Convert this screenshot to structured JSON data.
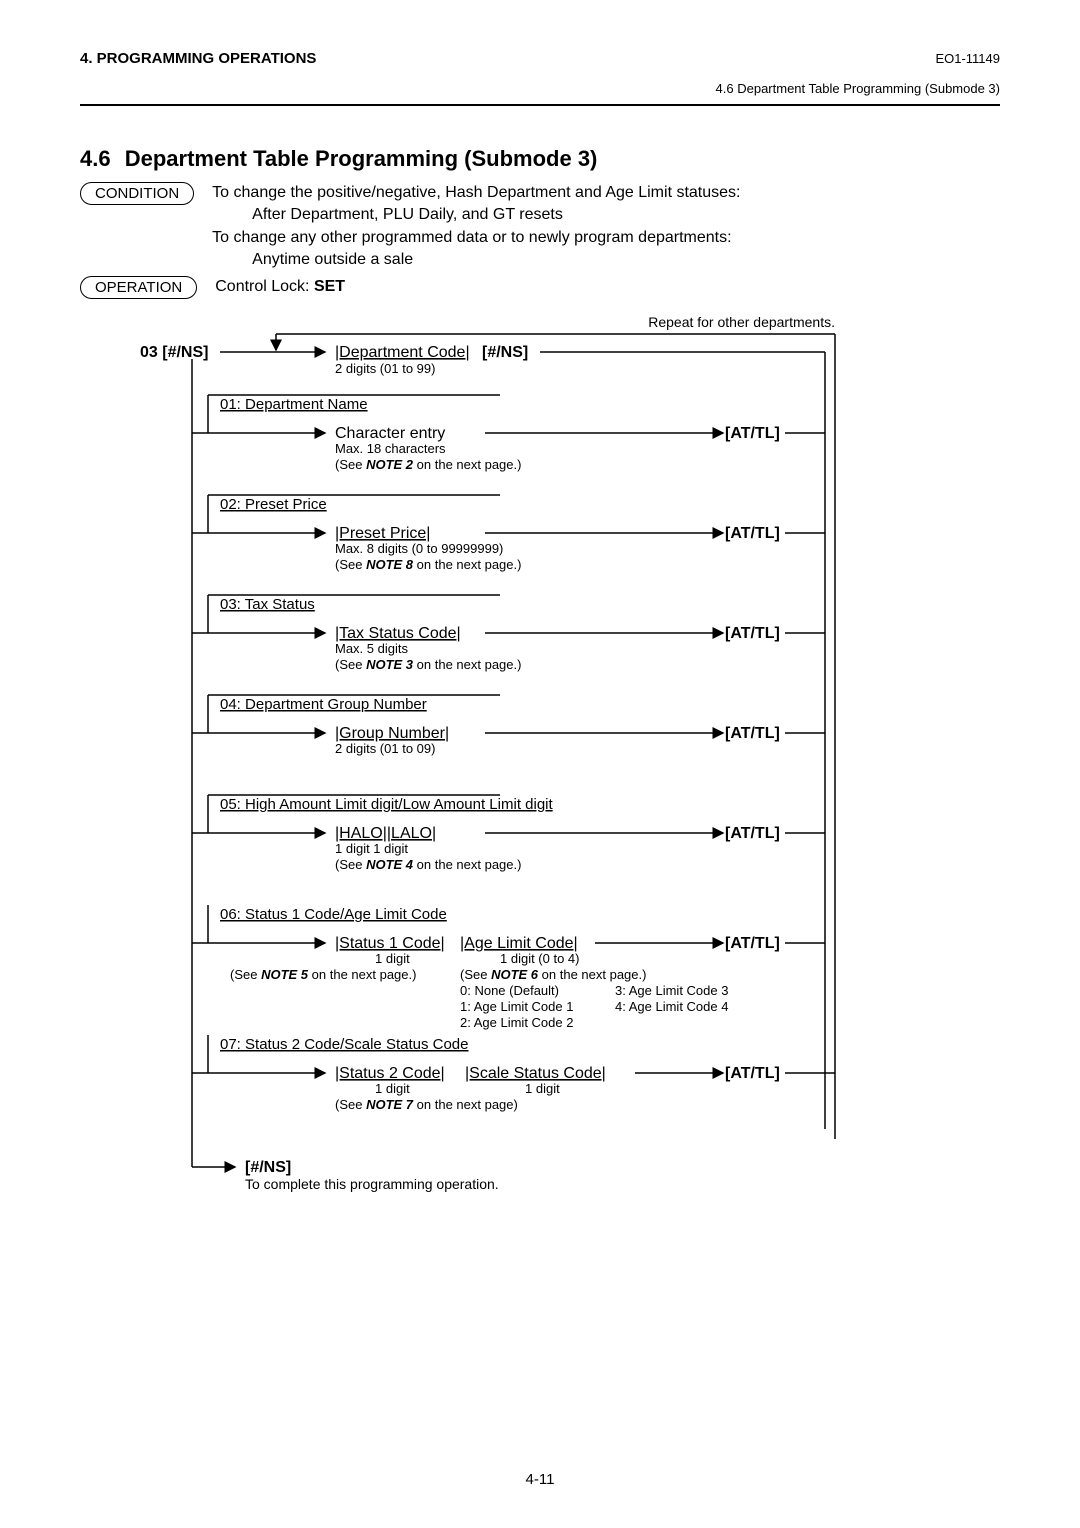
{
  "header": {
    "left": "4. PROGRAMMING OPERATIONS",
    "right": "EO1-11149",
    "sub": "4.6 Department Table Programming (Submode 3)"
  },
  "section": {
    "num": "4.6",
    "title": "Department Table Programming (Submode 3)"
  },
  "condition": {
    "label": "CONDITION",
    "line1": "To change the positive/negative, Hash Department and Age Limit statuses:",
    "line2": "After Department, PLU Daily, and GT resets",
    "line3": "To change any other programmed data or to newly program departments:",
    "line4": "Anytime outside a sale"
  },
  "operation": {
    "label": "OPERATION",
    "text_prefix": "Control Lock: ",
    "text_bold": "SET"
  },
  "diagram": {
    "repeat_note": "Repeat for other departments.",
    "entry_key": "03 [#/NS]",
    "dept_code": "|Department Code|",
    "dept_code_key": "[#/NS]",
    "dept_code_sub": "2 digits (01 to 99)",
    "items": [
      {
        "header": "01: Department Name",
        "field": "Character entry",
        "field_underline": false,
        "key": "[AT/TL]",
        "sub1": "Max. 18 characters",
        "sub2_a": "(See ",
        "sub2_b": "NOTE 2",
        "sub2_c": " on the next page.)"
      },
      {
        "header": "02: Preset Price",
        "field": "|Preset Price|",
        "field_underline": true,
        "key": "[AT/TL]",
        "sub1": "Max. 8 digits (0 to 99999999)",
        "sub2_a": "(See ",
        "sub2_b": "NOTE 8",
        "sub2_c": " on the next page.)"
      },
      {
        "header": "03: Tax Status",
        "field": "|Tax Status Code|",
        "field_underline": true,
        "key": "[AT/TL]",
        "sub1": "Max. 5 digits",
        "sub2_a": "(See ",
        "sub2_b": "NOTE 3",
        "sub2_c": " on the next page.)"
      },
      {
        "header": "04: Department Group Number",
        "field": "|Group Number|",
        "field_underline": true,
        "key": "[AT/TL]",
        "sub1": "2 digits (01 to 09)"
      },
      {
        "header": "05: High Amount Limit digit/Low Amount Limit digit",
        "field": "|HALO||LALO|",
        "field_underline": true,
        "key": "[AT/TL]",
        "sub1": "1 digit  1 digit",
        "sub2_a": "(See ",
        "sub2_b": "NOTE 4",
        "sub2_c": " on the next page.)"
      }
    ],
    "item06": {
      "header": "06: Status 1 Code/Age Limit Code",
      "field1": "|Status 1 Code|",
      "field2": "|Age Limit Code|",
      "key": "[AT/TL]",
      "s1": "1 digit",
      "s2": "1 digit (0 to 4)",
      "n5a": "(See ",
      "n5b": "NOTE 5",
      "n5c": " on the next page.)",
      "n6a": "(See ",
      "n6b": "NOTE 6",
      "n6c": " on the next page.)",
      "opt0": "0: None (Default)",
      "opt1": "1: Age Limit Code 1",
      "opt2": "2: Age Limit Code 2",
      "opt3": "3: Age Limit Code 3",
      "opt4": "4: Age Limit Code 4"
    },
    "item07": {
      "header": "07: Status 2 Code/Scale Status Code",
      "field1": "|Status 2 Code|",
      "field2": "|Scale Status Code|",
      "key": "[AT/TL]",
      "s1": "1 digit",
      "s2": "1 digit",
      "n7a": "(See ",
      "n7b": "NOTE 7",
      "n7c": " on the next page)"
    },
    "exit_key": "[#/NS]",
    "exit_note": "To complete this programming operation."
  },
  "footer": "4-11",
  "style": {
    "line_color": "#000000",
    "line_width": 1.5,
    "arrow_size": 6
  }
}
